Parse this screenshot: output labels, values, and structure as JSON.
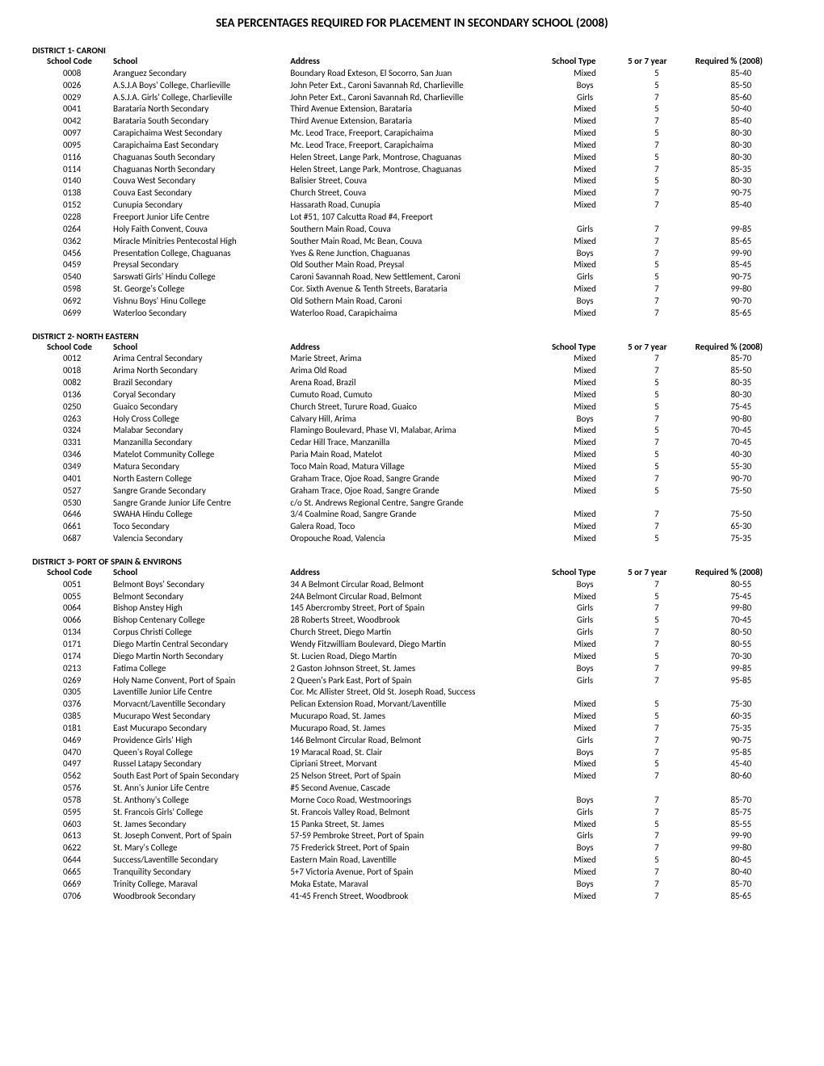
{
  "page_title": "SEA PERCENTAGES REQUIRED FOR PLACEMENT IN SECONDARY SCHOOL (2008)",
  "column_headers": {
    "code": "School Code",
    "school": "School",
    "address": "Address",
    "type": "School Type",
    "year": "5 or 7 year",
    "required": "Required % (2008)"
  },
  "districts": [
    {
      "label": "DISTRICT 1- CARONI",
      "rows": [
        {
          "code": "0008",
          "school": "Aranguez Secondary",
          "address": "Boundary Road Exteson, El Socorro, San Juan",
          "type": "Mixed",
          "year": "5",
          "req": "85-40"
        },
        {
          "code": "0026",
          "school": "A.S.J.A Boys' College, Charlieville",
          "address": "John Peter Ext., Caroni Savannah Rd, Charlieville",
          "type": "Boys",
          "year": "5",
          "req": "85-50"
        },
        {
          "code": "0029",
          "school": "A.S.J.A. Girls' College, Charlieville",
          "address": "John Peter Ext., Caroni Savannah Rd, Charlieville",
          "type": "Girls",
          "year": "7",
          "req": "85-60"
        },
        {
          "code": "0041",
          "school": "Barataria North Secondary",
          "address": "Third Avenue Extension, Barataria",
          "type": "Mixed",
          "year": "5",
          "req": "50-40"
        },
        {
          "code": "0042",
          "school": "Barataria South Secondary",
          "address": "Third Avenue Extension, Barataria",
          "type": "Mixed",
          "year": "7",
          "req": "85-40"
        },
        {
          "code": "0097",
          "school": "Carapichaima West Secondary",
          "address": "Mc. Leod Trace, Freeport, Carapichaima",
          "type": "Mixed",
          "year": "5",
          "req": "80-30"
        },
        {
          "code": "0095",
          "school": "Carapichaima East Secondary",
          "address": "Mc. Leod Trace, Freeport, Carapichaima",
          "type": "Mixed",
          "year": "7",
          "req": "80-30"
        },
        {
          "code": "0116",
          "school": "Chaguanas South Secondary",
          "address": "Helen Street, Lange Park, Montrose, Chaguanas",
          "type": "Mixed",
          "year": "5",
          "req": "80-30"
        },
        {
          "code": "0114",
          "school": "Chaguanas North Secondary",
          "address": "Helen Street, Lange Park, Montrose, Chaguanas",
          "type": "Mixed",
          "year": "7",
          "req": "85-35"
        },
        {
          "code": "0140",
          "school": "Couva West Secondary",
          "address": "Balisier Street, Couva",
          "type": "Mixed",
          "year": "5",
          "req": "80-30"
        },
        {
          "code": "0138",
          "school": "Couva East Secondary",
          "address": "Church Street, Couva",
          "type": "Mixed",
          "year": "7",
          "req": "90-75"
        },
        {
          "code": "0152",
          "school": "Cunupia Secondary",
          "address": "Hassarath Road, Cunupia",
          "type": "Mixed",
          "year": "7",
          "req": "85-40"
        },
        {
          "code": "0228",
          "school": "Freeport Junior Life Centre",
          "address": "Lot #51, 107 Calcutta Road #4, Freeport",
          "type": "",
          "year": "",
          "req": ""
        },
        {
          "code": "0264",
          "school": "Holy Faith Convent, Couva",
          "address": "Southern Main Road, Couva",
          "type": "Girls",
          "year": "7",
          "req": "99-85"
        },
        {
          "code": "0362",
          "school": "Miracle Minitries Pentecostal High",
          "address": "Souther Main Road, Mc Bean, Couva",
          "type": "Mixed",
          "year": "7",
          "req": "85-65"
        },
        {
          "code": "0456",
          "school": "Presentation College, Chaguanas",
          "address": "Yves &  Rene Junction, Chaguanas",
          "type": "Boys",
          "year": "7",
          "req": "99-90"
        },
        {
          "code": "0459",
          "school": "Preysal Secondary",
          "address": "Old Souther Main Road, Preysal",
          "type": "Mixed",
          "year": "5",
          "req": "85-45"
        },
        {
          "code": "0540",
          "school": "Sarswati Girls' Hindu College",
          "address": "Caroni Savannah Road, New Settlement, Caroni",
          "type": "Girls",
          "year": "5",
          "req": "90-75"
        },
        {
          "code": "0598",
          "school": "St. George's College",
          "address": "Cor. Sixth Avenue & Tenth Streets, Barataria",
          "type": "Mixed",
          "year": "7",
          "req": "99-80"
        },
        {
          "code": "0692",
          "school": "Vishnu Boys' Hinu College",
          "address": "Old Sothern Main Road, Caroni",
          "type": "Boys",
          "year": "7",
          "req": "90-70"
        },
        {
          "code": "0699",
          "school": "Waterloo Secondary",
          "address": "Waterloo Road, Carapichaima",
          "type": "Mixed",
          "year": "7",
          "req": "85-65"
        }
      ]
    },
    {
      "label": "DISTRICT 2- NORTH EASTERN",
      "rows": [
        {
          "code": "0012",
          "school": "Arima Central Secondary",
          "address": "Marie Street, Arima",
          "type": "Mixed",
          "year": "7",
          "req": "85-70"
        },
        {
          "code": "0018",
          "school": "Arima North Secondary",
          "address": "Arima Old Road",
          "type": "Mixed",
          "year": "7",
          "req": "85-50"
        },
        {
          "code": "0082",
          "school": "Brazil Secondary",
          "address": "Arena Road, Brazil",
          "type": "Mixed",
          "year": "5",
          "req": "80-35"
        },
        {
          "code": "0136",
          "school": "Coryal Secondary",
          "address": "Cumuto Road, Cumuto",
          "type": "Mixed",
          "year": "5",
          "req": "80-30"
        },
        {
          "code": "0250",
          "school": "Guaico Secondary",
          "address": "Church Street, Turure Road, Guaico",
          "type": "Mixed",
          "year": "5",
          "req": "75-45"
        },
        {
          "code": "0263",
          "school": "Holy Cross College",
          "address": "Calvary Hill, Arima",
          "type": "Boys",
          "year": "7",
          "req": "90-80"
        },
        {
          "code": "0324",
          "school": "Malabar Secondary",
          "address": "Flamingo Boulevard, Phase VI, Malabar, Arima",
          "type": "Mixed",
          "year": "5",
          "req": "70-45"
        },
        {
          "code": "0331",
          "school": "Manzanilla Secondary",
          "address": "Cedar Hill Trace, Manzanilla",
          "type": "Mixed",
          "year": "7",
          "req": "70-45"
        },
        {
          "code": "0346",
          "school": "Matelot Community College",
          "address": "Paria Main Road, Matelot",
          "type": "Mixed",
          "year": "5",
          "req": "40-30"
        },
        {
          "code": "0349",
          "school": "Matura Secondary",
          "address": "Toco Main Road, Matura Village",
          "type": "Mixed",
          "year": "5",
          "req": "55-30"
        },
        {
          "code": "0401",
          "school": "North Eastern College",
          "address": "Graham Trace, Ojoe Road, Sangre Grande",
          "type": "Mixed",
          "year": "7",
          "req": "90-70"
        },
        {
          "code": "0527",
          "school": "Sangre Grande Secondary",
          "address": "Graham Trace, Ojoe Road, Sangre Grande",
          "type": "Mixed",
          "year": "5",
          "req": "75-50"
        },
        {
          "code": "0530",
          "school": "Sangre Grande Junior Life Centre",
          "address": "c/o St. Andrews Regional Centre, Sangre Grande",
          "type": "",
          "year": "",
          "req": ""
        },
        {
          "code": "0646",
          "school": "SWAHA Hindu College",
          "address": "3/4 Coalmine Road, Sangre Grande",
          "type": "Mixed",
          "year": "7",
          "req": "75-50"
        },
        {
          "code": "0661",
          "school": "Toco Secondary",
          "address": "Galera Road, Toco",
          "type": "Mixed",
          "year": "7",
          "req": "65-30"
        },
        {
          "code": "0687",
          "school": "Valencia Secondary",
          "address": "Oropouche Road, Valencia",
          "type": "Mixed",
          "year": "5",
          "req": "75-35"
        }
      ]
    },
    {
      "label": "DISTRICT 3- PORT OF SPAIN & ENVIRONS",
      "rows": [
        {
          "code": "0051",
          "school": "Belmont Boys' Secondary",
          "address": "34 A Belmont Circular Road, Belmont",
          "type": "Boys",
          "year": "7",
          "req": "80-55"
        },
        {
          "code": "0055",
          "school": "Belmont Secondary",
          "address": "24A Belmont Circular Road, Belmont",
          "type": "Mixed",
          "year": "5",
          "req": "75-45"
        },
        {
          "code": "0064",
          "school": "Bishop Anstey High",
          "address": "145 Abercromby Street, Port of Spain",
          "type": "Girls",
          "year": "7",
          "req": "99-80"
        },
        {
          "code": "0066",
          "school": "Bishop Centenary College",
          "address": "28 Roberts Street, Woodbrook",
          "type": "Girls",
          "year": "5",
          "req": "70-45"
        },
        {
          "code": "0134",
          "school": "Corpus Christi College",
          "address": "Church Street, Diego Martin",
          "type": "Girls",
          "year": "7",
          "req": "80-50"
        },
        {
          "code": "0171",
          "school": "Diego Martin Central Secondary",
          "address": "Wendy Fitzwilliam Boulevard, Diego Martin",
          "type": "Mixed",
          "year": "7",
          "req": "80-55"
        },
        {
          "code": "0174",
          "school": "Diego Martin North Secondary",
          "address": "St. Lucien Road, Diego Martin",
          "type": "Mixed",
          "year": "5",
          "req": "70-30"
        },
        {
          "code": "0213",
          "school": "Fatima College",
          "address": "2 Gaston Johnson Street, St. James",
          "type": "Boys",
          "year": "7",
          "req": "99-85"
        },
        {
          "code": "0269",
          "school": "Holy Name Convent, Port of Spain",
          "address": "2 Queen's Park East, Port of Spain",
          "type": "Girls",
          "year": "7",
          "req": "95-85"
        },
        {
          "code": "0305",
          "school": "Laventille Junior Life Centre",
          "address": "Cor. Mc Allister Street, Old St. Joseph Road, Success",
          "type": "",
          "year": "",
          "req": ""
        },
        {
          "code": "0376",
          "school": "Morvacnt/Laventille Secondary",
          "address": "Pelican Extension Road, Morvant/Laventille",
          "type": "Mixed",
          "year": "5",
          "req": "75-30"
        },
        {
          "code": "0385",
          "school": "Mucurapo West Secondary",
          "address": "Mucurapo Road, St. James",
          "type": "Mixed",
          "year": "5",
          "req": "60-35"
        },
        {
          "code": "0181",
          "school": "East Mucurapo Secondary",
          "address": "Mucurapo Road, St. James",
          "type": "Mixed",
          "year": "7",
          "req": "75-35"
        },
        {
          "code": "0469",
          "school": "Providence Girls' High",
          "address": "146 Belmont Circular Road, Belmont",
          "type": "Girls",
          "year": "7",
          "req": "90-75"
        },
        {
          "code": "0470",
          "school": "Queen's Royal College",
          "address": "19 Maracal Road, St. Clair",
          "type": "Boys",
          "year": "7",
          "req": "95-85"
        },
        {
          "code": "0497",
          "school": "Russel Latapy Secondary",
          "address": "Cipriani Street, Morvant",
          "type": "Mixed",
          "year": "5",
          "req": "45-40"
        },
        {
          "code": "0562",
          "school": "South East Port of Spain Secondary",
          "address": "25 Nelson Street, Port of Spain",
          "type": "Mixed",
          "year": "7",
          "req": "80-60"
        },
        {
          "code": "0576",
          "school": "St. Ann's Junior Life Centre",
          "address": "#5 Second Avenue, Cascade",
          "type": "",
          "year": "",
          "req": ""
        },
        {
          "code": "0578",
          "school": "St. Anthony's College",
          "address": "Morne Coco Road, Westmoorings",
          "type": "Boys",
          "year": "7",
          "req": "85-70"
        },
        {
          "code": "0595",
          "school": "St. Francois Girls' College",
          "address": "St. Francois Valley Road, Belmont",
          "type": "Girls",
          "year": "7",
          "req": "85-75"
        },
        {
          "code": "0603",
          "school": "St. James Secondary",
          "address": "15 Panka Street, St. James",
          "type": "Mixed",
          "year": "5",
          "req": "85-55"
        },
        {
          "code": "0613",
          "school": "St. Joseph Convent, Port of Spain",
          "address": "57-59 Pembroke Street, Port of Spain",
          "type": "Girls",
          "year": "7",
          "req": "99-90"
        },
        {
          "code": "0622",
          "school": "St. Mary's College",
          "address": "75 Frederick Street, Port of Spain",
          "type": "Boys",
          "year": "7",
          "req": "99-80"
        },
        {
          "code": "0644",
          "school": "Success/Laventille Secondary",
          "address": "Eastern Main Road, Laventille",
          "type": "Mixed",
          "year": "5",
          "req": "80-45"
        },
        {
          "code": "0665",
          "school": "Tranquility Secondary",
          "address": "5+7 Victoria Avenue, Port of Spain",
          "type": "Mixed",
          "year": "7",
          "req": "80-40"
        },
        {
          "code": "0669",
          "school": "Trinity College, Maraval",
          "address": "Moka Estate, Maraval",
          "type": "Boys",
          "year": "7",
          "req": "85-70"
        },
        {
          "code": "0706",
          "school": "Woodbrook Secondary",
          "address": "41-45 French Street, Woodbrook",
          "type": "Mixed",
          "year": "7",
          "req": "85-65"
        }
      ]
    }
  ]
}
